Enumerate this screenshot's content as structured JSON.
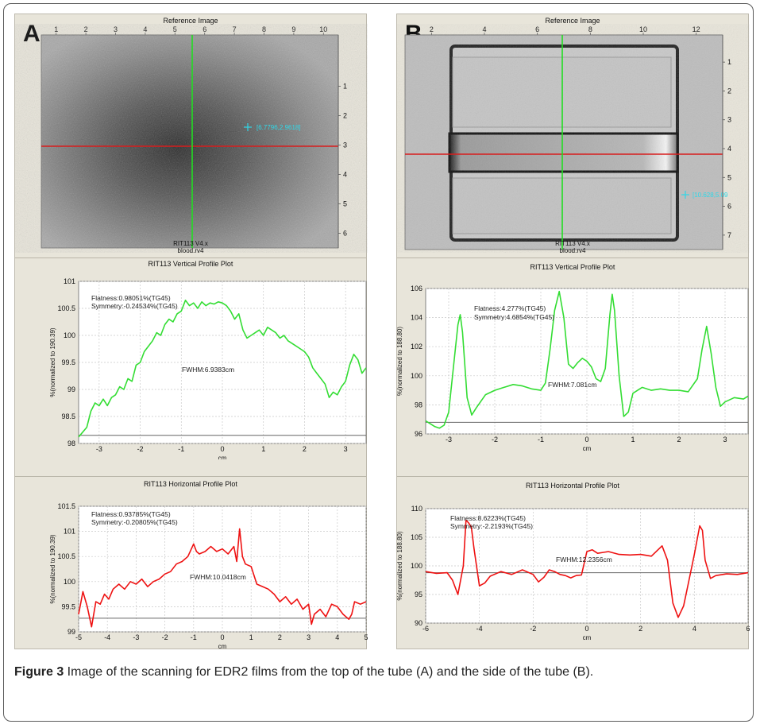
{
  "panels": [
    {
      "letter": "A",
      "image": {
        "title": "Reference Image",
        "file_label_1": "RIT113 V4.x",
        "file_label_2": "blood.rv4",
        "marker_text": "[6.7796,2.9618]"
      },
      "top_axis_ticks": [
        "1",
        "2",
        "3",
        "4",
        "5",
        "6",
        "7",
        "8",
        "9",
        "10"
      ],
      "right_axis_ticks": [
        "1",
        "2",
        "3",
        "4",
        "5",
        "6"
      ]
    },
    {
      "letter": "B",
      "image": {
        "title": "Reference Image",
        "file_label_1": "RIT113 V4.x",
        "file_label_2": "blood.rv4",
        "marker_text": "[10.628,5.09"
      },
      "top_axis_ticks": [
        "2",
        "4",
        "6",
        "8",
        "10",
        "12"
      ],
      "right_axis_ticks": [
        "1",
        "2",
        "3",
        "4",
        "5",
        "6",
        "7"
      ]
    }
  ],
  "chart_data": [
    {
      "id": "A-vertical",
      "type": "line",
      "title": "RIT113 Vertical Profile Plot",
      "xlabel": "cm",
      "ylabel": "%(normalized to 190.39)",
      "xlim": [
        -3.5,
        3.5
      ],
      "ylim": [
        98,
        101
      ],
      "x_ticks": [
        -3,
        -2,
        -1,
        0,
        1,
        2,
        3
      ],
      "y_ticks": [
        98,
        98.5,
        99,
        99.5,
        100,
        100.5,
        101
      ],
      "color": "#33dd33",
      "annotations": [
        "Flatness:0.98051%(TG45)",
        "Symmetry:-0.24534%(TG45)",
        "FWHM:6.9383cm"
      ],
      "baseline": 98.15,
      "x": [
        -3.5,
        -3.3,
        -3.2,
        -3.1,
        -3.0,
        -2.9,
        -2.8,
        -2.7,
        -2.6,
        -2.5,
        -2.4,
        -2.3,
        -2.2,
        -2.1,
        -2.0,
        -1.9,
        -1.8,
        -1.7,
        -1.6,
        -1.5,
        -1.4,
        -1.3,
        -1.2,
        -1.1,
        -1.0,
        -0.9,
        -0.8,
        -0.7,
        -0.6,
        -0.5,
        -0.4,
        -0.3,
        -0.2,
        -0.1,
        0.0,
        0.1,
        0.2,
        0.3,
        0.4,
        0.5,
        0.6,
        0.7,
        0.8,
        0.9,
        1.0,
        1.1,
        1.2,
        1.3,
        1.4,
        1.5,
        1.6,
        1.7,
        1.8,
        1.9,
        2.0,
        2.1,
        2.2,
        2.3,
        2.4,
        2.5,
        2.6,
        2.7,
        2.8,
        2.9,
        3.0,
        3.1,
        3.2,
        3.3,
        3.4,
        3.5
      ],
      "y": [
        98.12,
        98.3,
        98.6,
        98.75,
        98.7,
        98.82,
        98.7,
        98.85,
        98.9,
        99.05,
        99.0,
        99.2,
        99.15,
        99.45,
        99.5,
        99.7,
        99.8,
        99.9,
        100.05,
        100.0,
        100.2,
        100.3,
        100.25,
        100.4,
        100.45,
        100.65,
        100.55,
        100.6,
        100.5,
        100.62,
        100.55,
        100.6,
        100.58,
        100.62,
        100.6,
        100.55,
        100.45,
        100.3,
        100.4,
        100.1,
        99.95,
        100.0,
        100.05,
        100.1,
        100.0,
        100.15,
        100.1,
        100.05,
        99.95,
        100.0,
        99.9,
        99.85,
        99.8,
        99.75,
        99.7,
        99.6,
        99.4,
        99.3,
        99.2,
        99.1,
        98.85,
        98.95,
        98.9,
        99.05,
        99.15,
        99.45,
        99.65,
        99.55,
        99.3,
        99.4
      ]
    },
    {
      "id": "A-horizontal",
      "type": "line",
      "title": "RIT113 Horizontal Profile Plot",
      "xlabel": "cm",
      "ylabel": "%(normalized to 190.39)",
      "xlim": [
        -5,
        5
      ],
      "ylim": [
        99,
        101.5
      ],
      "x_ticks": [
        -5,
        -4,
        -3,
        -2,
        -1,
        0,
        1,
        2,
        3,
        4,
        5
      ],
      "y_ticks": [
        99,
        99.5,
        100,
        100.5,
        101,
        101.5
      ],
      "color": "#ee1111",
      "annotations": [
        "Flatness:0.93785%(TG45)",
        "Symmetry:-0.20805%(TG45)",
        "FWHM:10.0418cm"
      ],
      "baseline": 99.27,
      "x": [
        -5.0,
        -4.85,
        -4.7,
        -4.55,
        -4.4,
        -4.25,
        -4.1,
        -3.95,
        -3.8,
        -3.6,
        -3.4,
        -3.2,
        -3.0,
        -2.8,
        -2.6,
        -2.4,
        -2.2,
        -2.0,
        -1.8,
        -1.6,
        -1.4,
        -1.2,
        -1.0,
        -0.9,
        -0.8,
        -0.6,
        -0.4,
        -0.2,
        0.0,
        0.2,
        0.4,
        0.5,
        0.6,
        0.7,
        0.8,
        1.0,
        1.2,
        1.4,
        1.6,
        1.8,
        2.0,
        2.2,
        2.4,
        2.6,
        2.8,
        3.0,
        3.1,
        3.2,
        3.4,
        3.6,
        3.8,
        4.0,
        4.2,
        4.4,
        4.5,
        4.6,
        4.8,
        5.0
      ],
      "y": [
        99.35,
        99.8,
        99.5,
        99.1,
        99.6,
        99.55,
        99.75,
        99.65,
        99.85,
        99.95,
        99.85,
        100.0,
        99.95,
        100.05,
        99.9,
        100.0,
        100.05,
        100.15,
        100.2,
        100.35,
        100.4,
        100.5,
        100.75,
        100.6,
        100.55,
        100.6,
        100.7,
        100.6,
        100.65,
        100.55,
        100.7,
        100.4,
        101.05,
        100.5,
        100.35,
        100.3,
        99.95,
        99.9,
        99.85,
        99.75,
        99.6,
        99.7,
        99.55,
        99.65,
        99.45,
        99.55,
        99.15,
        99.35,
        99.45,
        99.3,
        99.55,
        99.5,
        99.35,
        99.25,
        99.35,
        99.6,
        99.55,
        99.6
      ]
    },
    {
      "id": "B-vertical",
      "type": "line",
      "title": "RIT113 Vertical Profile Plot",
      "xlabel": "cm",
      "ylabel": "%(normalized to 188.80)",
      "xlim": [
        -3.5,
        3.5
      ],
      "ylim": [
        96,
        106
      ],
      "x_ticks": [
        -3,
        -2,
        -1,
        0,
        1,
        2,
        3
      ],
      "y_ticks": [
        96,
        98,
        100,
        102,
        104,
        106
      ],
      "color": "#33dd33",
      "annotations": [
        "Flatness:4.277%(TG45)",
        "Symmetry:4.6854%(TG45)",
        "FWHM:7.081cm"
      ],
      "baseline": 96.8,
      "x": [
        -3.5,
        -3.4,
        -3.3,
        -3.2,
        -3.1,
        -3.0,
        -2.9,
        -2.8,
        -2.75,
        -2.7,
        -2.6,
        -2.5,
        -2.4,
        -2.2,
        -2.0,
        -1.8,
        -1.6,
        -1.4,
        -1.2,
        -1.0,
        -0.9,
        -0.8,
        -0.7,
        -0.6,
        -0.5,
        -0.4,
        -0.3,
        -0.2,
        -0.1,
        0.0,
        0.1,
        0.2,
        0.3,
        0.4,
        0.5,
        0.55,
        0.6,
        0.7,
        0.8,
        0.9,
        1.0,
        1.2,
        1.4,
        1.6,
        1.8,
        2.0,
        2.2,
        2.4,
        2.5,
        2.6,
        2.7,
        2.8,
        2.9,
        3.0,
        3.2,
        3.4,
        3.5
      ],
      "y": [
        96.9,
        96.7,
        96.5,
        96.4,
        96.6,
        97.5,
        100.5,
        103.5,
        104.2,
        103.0,
        98.5,
        97.3,
        97.8,
        98.7,
        99.0,
        99.2,
        99.4,
        99.3,
        99.1,
        99.0,
        99.5,
        101.8,
        104.5,
        105.8,
        104.0,
        100.8,
        100.5,
        100.9,
        101.2,
        101.0,
        100.6,
        99.8,
        99.6,
        100.5,
        104.2,
        105.6,
        104.5,
        100.0,
        97.2,
        97.5,
        98.8,
        99.2,
        99.0,
        99.1,
        99.0,
        99.0,
        98.9,
        99.8,
        101.8,
        103.4,
        101.5,
        99.2,
        97.9,
        98.2,
        98.5,
        98.4,
        98.6
      ]
    },
    {
      "id": "B-horizontal",
      "type": "line",
      "title": "RIT113 Horizontal Profile Plot",
      "xlabel": "cm",
      "ylabel": "%(normalized to 188.80)",
      "xlim": [
        -6,
        6
      ],
      "ylim": [
        90,
        110
      ],
      "x_ticks": [
        -6,
        -4,
        -2,
        0,
        2,
        4,
        6
      ],
      "y_ticks": [
        90,
        95,
        100,
        105,
        110
      ],
      "color": "#ee1111",
      "annotations": [
        "Flatness:8.6223%(TG45)",
        "Symmetry:-2.2193%(TG45)",
        "FWHM:12.2356cm"
      ],
      "baseline": 98.8,
      "x": [
        -6.0,
        -5.6,
        -5.2,
        -5.0,
        -4.8,
        -4.6,
        -4.5,
        -4.4,
        -4.3,
        -4.2,
        -4.0,
        -3.8,
        -3.6,
        -3.2,
        -2.8,
        -2.4,
        -2.0,
        -1.8,
        -1.6,
        -1.4,
        -1.2,
        -1.0,
        -0.8,
        -0.6,
        -0.4,
        -0.2,
        0.0,
        0.2,
        0.4,
        0.8,
        1.2,
        1.6,
        2.0,
        2.4,
        2.8,
        3.0,
        3.2,
        3.4,
        3.6,
        3.8,
        4.0,
        4.2,
        4.3,
        4.4,
        4.6,
        4.8,
        5.2,
        5.6,
        6.0
      ],
      "y": [
        99.0,
        98.7,
        98.8,
        97.5,
        95.0,
        100.0,
        108.0,
        107.5,
        106.8,
        103.0,
        96.5,
        97.0,
        98.2,
        99.0,
        98.5,
        99.3,
        98.5,
        97.2,
        98.0,
        99.3,
        99.0,
        98.5,
        98.3,
        97.9,
        98.3,
        98.4,
        102.5,
        102.8,
        102.2,
        102.5,
        102.0,
        101.9,
        102.0,
        101.7,
        103.5,
        101.0,
        93.5,
        91.0,
        93.0,
        97.5,
        102.0,
        107.0,
        106.2,
        101.0,
        97.8,
        98.3,
        98.6,
        98.5,
        98.8
      ]
    }
  ],
  "caption": {
    "label": "Figure 3",
    "text": " Image of the scanning for EDR2 films from the top of the tube (A) and the side of the tube (B)."
  }
}
